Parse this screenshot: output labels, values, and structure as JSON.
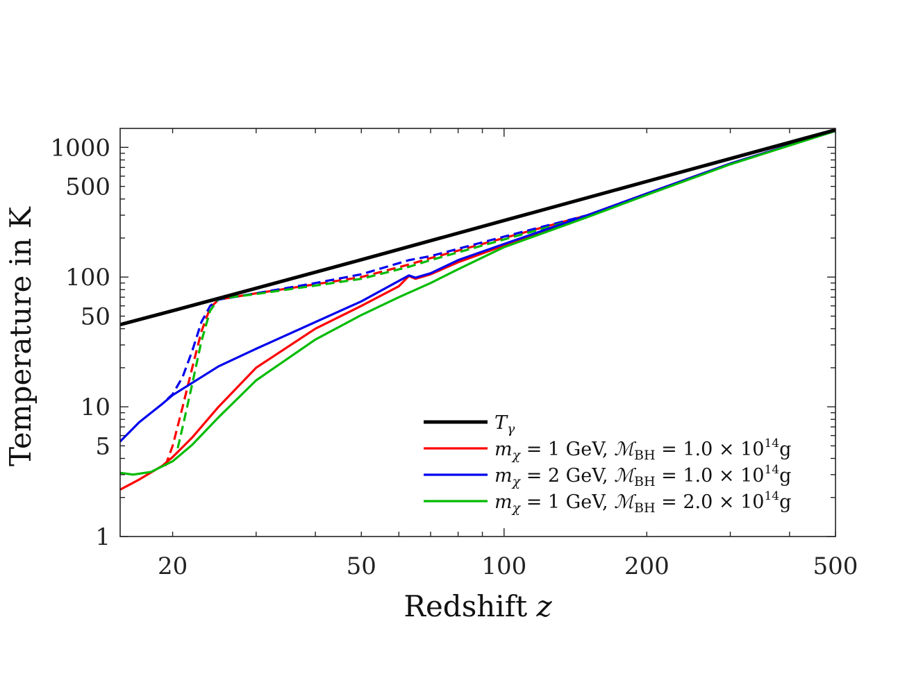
{
  "chart_data": {
    "type": "line",
    "xscale": "log",
    "yscale": "log",
    "xlabel": "Redshift",
    "xlabel_var": "z",
    "ylabel": "Temperature in K",
    "xlim": [
      15.5,
      500
    ],
    "ylim": [
      1,
      1400
    ],
    "xticks": [
      20,
      50,
      100,
      200,
      500
    ],
    "yticks": [
      1,
      5,
      10,
      50,
      100,
      500,
      1000
    ],
    "legend_position": "bottom-right",
    "series": [
      {
        "name": "T_gamma",
        "label_main": "T",
        "label_sub": "γ",
        "color": "#000000",
        "style": "solid",
        "x": [
          15.5,
          20,
          30,
          50,
          100,
          200,
          500
        ],
        "y": [
          43,
          55,
          82,
          136,
          273,
          546,
          1365
        ]
      },
      {
        "name": "m1_M1_gas",
        "label_pre": "m",
        "label_sub": "χ",
        "label_mid": " = 1 GeV, ",
        "label_M": "ℳ",
        "label_sub2": "BH",
        "label_post": " = 1.0 × 10",
        "label_sup": "14",
        "label_tail": "g",
        "color": "#ff0000",
        "style": "solid",
        "x": [
          15.5,
          17,
          19,
          20,
          22,
          25,
          30,
          40,
          50,
          60,
          63,
          65,
          70,
          80,
          100,
          150,
          200,
          300,
          500
        ],
        "y": [
          2.3,
          2.75,
          3.5,
          4.1,
          5.8,
          10,
          20,
          40,
          60,
          85,
          102,
          97,
          105,
          130,
          175,
          300,
          440,
          750,
          1340
        ]
      },
      {
        "name": "m2_M1_gas",
        "label_pre": "m",
        "label_sub": "χ",
        "label_mid": " = 2 GeV, ",
        "label_M": "ℳ",
        "label_sub2": "BH",
        "label_post": " = 1.0 × 10",
        "label_sup": "14",
        "label_tail": "g",
        "color": "#0000ee",
        "style": "solid",
        "x": [
          15.5,
          17,
          19,
          20,
          25,
          30,
          40,
          50,
          63,
          65,
          70,
          80,
          100,
          150,
          200,
          300,
          500
        ],
        "y": [
          5.4,
          7.6,
          10.5,
          12.3,
          20.5,
          28,
          45,
          65,
          103,
          99,
          107,
          135,
          180,
          300,
          440,
          750,
          1340
        ]
      },
      {
        "name": "m1_M2_gas",
        "label_pre": "m",
        "label_sub": "χ",
        "label_mid": " = 1 GeV, ",
        "label_M": "ℳ",
        "label_sub2": "BH",
        "label_post": " = 2.0 × 10",
        "label_sup": "14",
        "label_tail": "g",
        "color": "#00bb00",
        "style": "solid",
        "x": [
          15.5,
          16.5,
          18,
          20,
          22,
          25,
          30,
          40,
          50,
          60,
          70,
          80,
          100,
          150,
          200,
          300,
          500
        ],
        "y": [
          3.1,
          3.0,
          3.15,
          3.8,
          5.1,
          8.3,
          16,
          33,
          51,
          70,
          90,
          115,
          170,
          290,
          430,
          740,
          1340
        ]
      },
      {
        "name": "m1_M1_dm",
        "color": "#ff0000",
        "style": "dashed",
        "x": [
          19.3,
          20,
          21,
          22,
          23,
          24,
          25,
          30,
          40,
          50,
          63,
          70,
          100,
          150,
          200,
          300,
          500
        ],
        "y": [
          3.5,
          5,
          10,
          20,
          38,
          58,
          67,
          75,
          88,
          100,
          125,
          140,
          200,
          300,
          440,
          750,
          1340
        ]
      },
      {
        "name": "m2_M1_dm",
        "color": "#0000ee",
        "style": "dashed",
        "x": [
          19.5,
          20,
          21,
          22,
          23,
          24,
          25,
          30,
          40,
          50,
          63,
          70,
          100,
          150,
          200,
          300,
          500
        ],
        "y": [
          11.5,
          12.5,
          17,
          27,
          45,
          60,
          67,
          75,
          90,
          105,
          135,
          145,
          205,
          300,
          440,
          750,
          1340
        ]
      },
      {
        "name": "m1_M2_dm",
        "color": "#00bb00",
        "style": "dashed",
        "x": [
          20.5,
          21,
          22,
          23,
          24,
          25,
          30,
          40,
          50,
          63,
          70,
          100,
          150,
          200,
          300,
          500
        ],
        "y": [
          4.8,
          7,
          15,
          32,
          55,
          68,
          74,
          86,
          97,
          120,
          135,
          195,
          295,
          435,
          745,
          1340
        ]
      }
    ]
  }
}
